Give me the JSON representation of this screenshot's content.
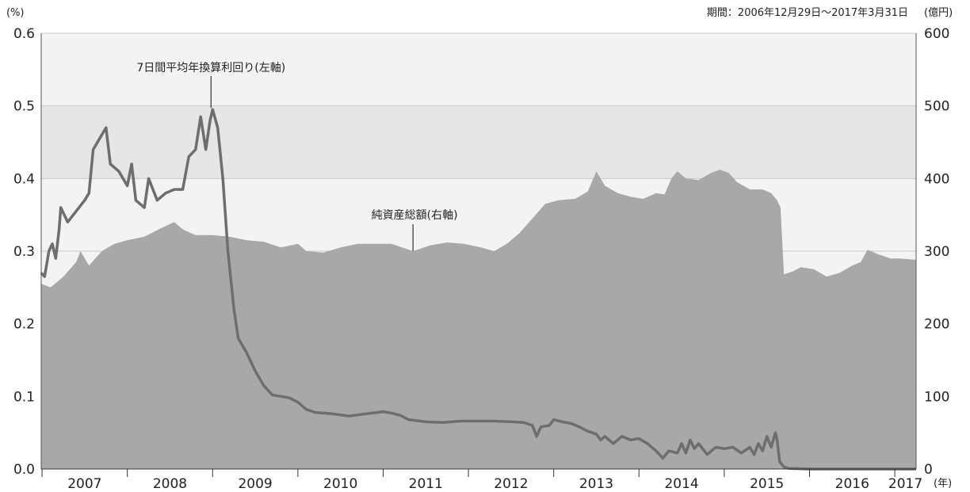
{
  "chart_data": {
    "type": "area",
    "period_note": "期間：2006年12月29日～2017年3月31日",
    "left_axis": {
      "unit": "(%)",
      "ylim": [
        0,
        0.6
      ],
      "ticks": [
        "0.0",
        "0.1",
        "0.2",
        "0.3",
        "0.4",
        "0.5",
        "0.6"
      ]
    },
    "right_axis": {
      "unit": "(億円)",
      "ylim": [
        0,
        600
      ],
      "ticks": [
        "0",
        "100",
        "200",
        "300",
        "400",
        "500",
        "600"
      ]
    },
    "x_axis": {
      "unit": "(年)",
      "range": [
        2006.99,
        2017.25
      ],
      "ticks": [
        "2007",
        "2008",
        "2009",
        "2010",
        "2011",
        "2012",
        "2013",
        "2014",
        "2015",
        "2016",
        "2017"
      ]
    },
    "grid": true,
    "series": [
      {
        "name": "純資産総額(右軸)",
        "axis": "right",
        "kind": "area",
        "color": "#a8a8a8",
        "points": [
          [
            2006.99,
            255
          ],
          [
            2007.1,
            250
          ],
          [
            2007.25,
            265
          ],
          [
            2007.4,
            285
          ],
          [
            2007.45,
            300
          ],
          [
            2007.55,
            280
          ],
          [
            2007.7,
            300
          ],
          [
            2007.85,
            310
          ],
          [
            2008.0,
            315
          ],
          [
            2008.2,
            320
          ],
          [
            2008.4,
            332
          ],
          [
            2008.55,
            340
          ],
          [
            2008.65,
            330
          ],
          [
            2008.8,
            322
          ],
          [
            2009.0,
            322
          ],
          [
            2009.2,
            320
          ],
          [
            2009.4,
            315
          ],
          [
            2009.6,
            313
          ],
          [
            2009.8,
            305
          ],
          [
            2010.0,
            310
          ],
          [
            2010.1,
            300
          ],
          [
            2010.3,
            298
          ],
          [
            2010.5,
            305
          ],
          [
            2010.7,
            310
          ],
          [
            2010.9,
            310
          ],
          [
            2011.1,
            310
          ],
          [
            2011.35,
            300
          ],
          [
            2011.55,
            308
          ],
          [
            2011.75,
            312
          ],
          [
            2011.95,
            310
          ],
          [
            2012.15,
            305
          ],
          [
            2012.3,
            300
          ],
          [
            2012.45,
            310
          ],
          [
            2012.6,
            325
          ],
          [
            2012.75,
            345
          ],
          [
            2012.9,
            365
          ],
          [
            2013.05,
            370
          ],
          [
            2013.25,
            372
          ],
          [
            2013.4,
            382
          ],
          [
            2013.5,
            410
          ],
          [
            2013.6,
            390
          ],
          [
            2013.75,
            380
          ],
          [
            2013.9,
            375
          ],
          [
            2014.05,
            372
          ],
          [
            2014.2,
            380
          ],
          [
            2014.3,
            378
          ],
          [
            2014.38,
            400
          ],
          [
            2014.45,
            410
          ],
          [
            2014.55,
            400
          ],
          [
            2014.7,
            398
          ],
          [
            2014.85,
            408
          ],
          [
            2014.95,
            412
          ],
          [
            2015.05,
            408
          ],
          [
            2015.15,
            395
          ],
          [
            2015.3,
            385
          ],
          [
            2015.45,
            385
          ],
          [
            2015.55,
            380
          ],
          [
            2015.62,
            370
          ],
          [
            2015.66,
            360
          ],
          [
            2015.7,
            268
          ],
          [
            2015.8,
            272
          ],
          [
            2015.9,
            278
          ],
          [
            2016.05,
            275
          ],
          [
            2016.2,
            265
          ],
          [
            2016.35,
            270
          ],
          [
            2016.5,
            280
          ],
          [
            2016.6,
            285
          ],
          [
            2016.68,
            302
          ],
          [
            2016.8,
            296
          ],
          [
            2016.95,
            290
          ],
          [
            2017.05,
            290
          ],
          [
            2017.25,
            288
          ]
        ]
      },
      {
        "name": "7日間平均年換算利回り(左軸)",
        "axis": "left",
        "kind": "line",
        "color": "#6e6e6e",
        "points": [
          [
            2006.99,
            0.27
          ],
          [
            2007.03,
            0.265
          ],
          [
            2007.08,
            0.3
          ],
          [
            2007.12,
            0.31
          ],
          [
            2007.16,
            0.29
          ],
          [
            2007.2,
            0.33
          ],
          [
            2007.22,
            0.36
          ],
          [
            2007.3,
            0.34
          ],
          [
            2007.4,
            0.355
          ],
          [
            2007.5,
            0.37
          ],
          [
            2007.55,
            0.38
          ],
          [
            2007.6,
            0.44
          ],
          [
            2007.7,
            0.46
          ],
          [
            2007.75,
            0.47
          ],
          [
            2007.8,
            0.42
          ],
          [
            2007.9,
            0.41
          ],
          [
            2008.0,
            0.39
          ],
          [
            2008.05,
            0.42
          ],
          [
            2008.1,
            0.37
          ],
          [
            2008.2,
            0.36
          ],
          [
            2008.25,
            0.4
          ],
          [
            2008.3,
            0.385
          ],
          [
            2008.35,
            0.37
          ],
          [
            2008.45,
            0.38
          ],
          [
            2008.55,
            0.385
          ],
          [
            2008.65,
            0.385
          ],
          [
            2008.72,
            0.43
          ],
          [
            2008.8,
            0.44
          ],
          [
            2008.86,
            0.485
          ],
          [
            2008.92,
            0.44
          ],
          [
            2008.97,
            0.48
          ],
          [
            2009.0,
            0.495
          ],
          [
            2009.06,
            0.47
          ],
          [
            2009.12,
            0.4
          ],
          [
            2009.18,
            0.3
          ],
          [
            2009.25,
            0.22
          ],
          [
            2009.3,
            0.18
          ],
          [
            2009.4,
            0.16
          ],
          [
            2009.5,
            0.135
          ],
          [
            2009.6,
            0.115
          ],
          [
            2009.7,
            0.102
          ],
          [
            2009.8,
            0.1
          ],
          [
            2009.9,
            0.098
          ],
          [
            2010.0,
            0.092
          ],
          [
            2010.1,
            0.082
          ],
          [
            2010.2,
            0.078
          ],
          [
            2010.4,
            0.076
          ],
          [
            2010.6,
            0.073
          ],
          [
            2010.8,
            0.076
          ],
          [
            2011.0,
            0.079
          ],
          [
            2011.1,
            0.077
          ],
          [
            2011.2,
            0.074
          ],
          [
            2011.3,
            0.068
          ],
          [
            2011.5,
            0.065
          ],
          [
            2011.7,
            0.064
          ],
          [
            2011.9,
            0.066
          ],
          [
            2012.1,
            0.066
          ],
          [
            2012.3,
            0.066
          ],
          [
            2012.5,
            0.065
          ],
          [
            2012.65,
            0.064
          ],
          [
            2012.75,
            0.06
          ],
          [
            2012.8,
            0.045
          ],
          [
            2012.85,
            0.058
          ],
          [
            2012.95,
            0.06
          ],
          [
            2013.0,
            0.068
          ],
          [
            2013.1,
            0.065
          ],
          [
            2013.2,
            0.063
          ],
          [
            2013.3,
            0.058
          ],
          [
            2013.4,
            0.052
          ],
          [
            2013.5,
            0.048
          ],
          [
            2013.55,
            0.04
          ],
          [
            2013.6,
            0.045
          ],
          [
            2013.7,
            0.035
          ],
          [
            2013.8,
            0.045
          ],
          [
            2013.9,
            0.04
          ],
          [
            2014.0,
            0.042
          ],
          [
            2014.1,
            0.035
          ],
          [
            2014.2,
            0.025
          ],
          [
            2014.28,
            0.015
          ],
          [
            2014.35,
            0.025
          ],
          [
            2014.45,
            0.022
          ],
          [
            2014.5,
            0.035
          ],
          [
            2014.55,
            0.022
          ],
          [
            2014.6,
            0.04
          ],
          [
            2014.65,
            0.028
          ],
          [
            2014.7,
            0.035
          ],
          [
            2014.8,
            0.02
          ],
          [
            2014.9,
            0.03
          ],
          [
            2015.0,
            0.028
          ],
          [
            2015.1,
            0.03
          ],
          [
            2015.2,
            0.022
          ],
          [
            2015.3,
            0.03
          ],
          [
            2015.35,
            0.02
          ],
          [
            2015.4,
            0.035
          ],
          [
            2015.45,
            0.025
          ],
          [
            2015.5,
            0.045
          ],
          [
            2015.55,
            0.03
          ],
          [
            2015.6,
            0.05
          ],
          [
            2015.62,
            0.04
          ],
          [
            2015.65,
            0.01
          ],
          [
            2015.7,
            0.003
          ],
          [
            2015.75,
            0.001
          ],
          [
            2016.0,
            0.0
          ],
          [
            2016.5,
            0.0
          ],
          [
            2017.0,
            0.0
          ],
          [
            2017.25,
            0.0
          ]
        ]
      }
    ],
    "annotations": [
      {
        "text": "7日間平均年換算利回り(左軸)",
        "series": "left",
        "at": [
          2009.0,
          0.495
        ]
      },
      {
        "text": "純資産総額(右軸)",
        "series": "right",
        "at": [
          2011.35,
          300
        ]
      }
    ]
  }
}
